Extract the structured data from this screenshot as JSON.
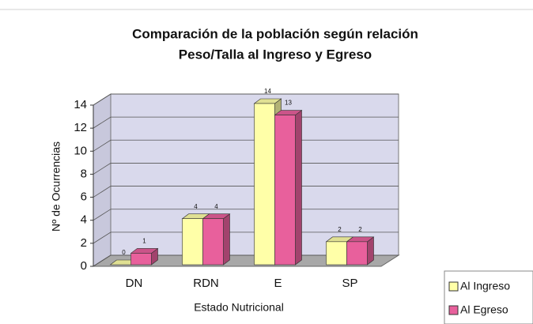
{
  "chart_data": {
    "type": "bar3d",
    "title": [
      "Comparación de la población según relación",
      "Peso/Talla al Ingreso y Egreso"
    ],
    "x_label": "Estado Nutricional",
    "y_label": "Nº de Ocurrencias",
    "categories": [
      "DN",
      "RDN",
      "E",
      "SP"
    ],
    "series": [
      {
        "name": "Al Ingreso",
        "color": "#ffffa8",
        "values": [
          0,
          4,
          14,
          2
        ]
      },
      {
        "name": "Al Egreso",
        "color": "#e8609c",
        "values": [
          1,
          4,
          13,
          2
        ]
      }
    ],
    "ylim": [
      0,
      14
    ],
    "yticks": [
      0,
      2,
      4,
      6,
      8,
      10,
      12,
      14
    ],
    "grid": true,
    "legend": "bottom-right"
  }
}
